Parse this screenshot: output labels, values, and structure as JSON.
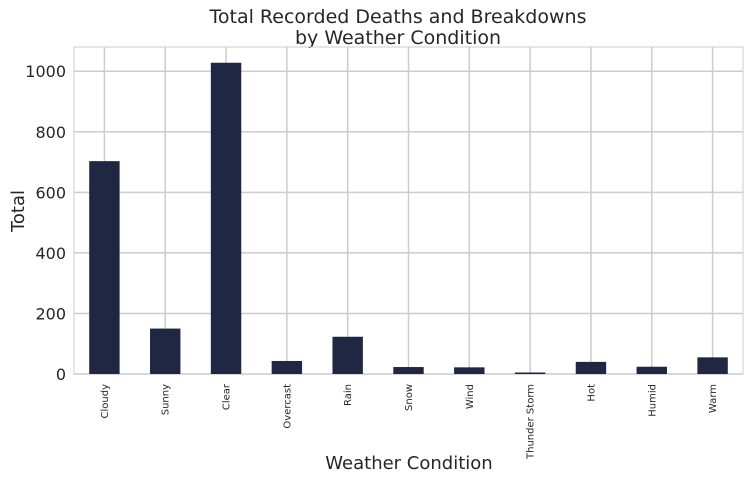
{
  "chart_data": {
    "type": "bar",
    "title_line1": "Total Recorded Deaths and Breakdowns",
    "title_line2": "by Weather Condition",
    "xlabel": "Weather Condition",
    "ylabel": "Total",
    "categories": [
      "Cloudy",
      "Sunny",
      "Clear",
      "Overcast",
      "Rain",
      "Snow",
      "Wind",
      "Thunder Storm",
      "Hot",
      "Humid",
      "Warm"
    ],
    "values": [
      703,
      150,
      1028,
      43,
      123,
      23,
      22,
      5,
      40,
      24,
      55
    ],
    "ylim": [
      0,
      1080
    ],
    "yticks": [
      0,
      200,
      400,
      600,
      800,
      1000
    ],
    "grid": true,
    "bar_color": "#1f2742"
  }
}
